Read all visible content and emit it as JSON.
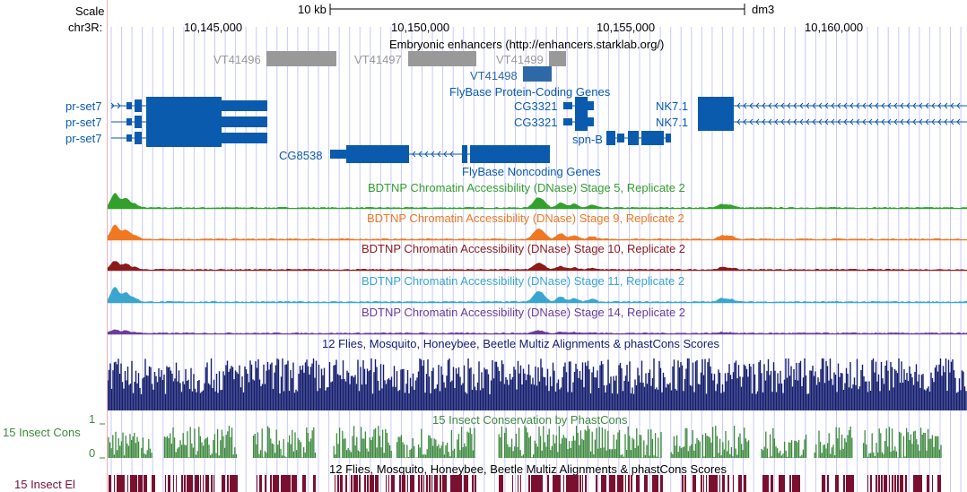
{
  "header": {
    "scale_label": "Scale",
    "chrom_label": "chr3R:",
    "scalebar_label": "10 kb",
    "assembly": "dm3",
    "ticks": [
      "10,145,000",
      "10,150,000",
      "10,155,000",
      "10,160,000"
    ]
  },
  "tracks": {
    "enhancers": {
      "title": "Embryonic enhancers (http://enhancers.starklab.org/)",
      "items": [
        "VT41496",
        "VT41497",
        "VT41499",
        "VT41498"
      ]
    },
    "coding": {
      "title": "FlyBase Protein-Coding Genes",
      "genes": [
        "pr-set7",
        "pr-set7",
        "pr-set7",
        "CG3321",
        "CG3321",
        "NK7.1",
        "NK7.1",
        "spn-B"
      ]
    },
    "noncoding": {
      "title": "FlyBase Noncoding Genes",
      "genes": [
        "CG8538"
      ]
    },
    "dnase": [
      {
        "title": "BDTNP Chromatin Accessibility (DNase) Stage 5, Replicate 2",
        "color": "#33a02c"
      },
      {
        "title": "BDTNP Chromatin Accessibility (DNase) Stage 9, Replicate 2",
        "color": "#f07820"
      },
      {
        "title": "BDTNP Chromatin Accessibility (DNase) Stage 10, Replicate 2",
        "color": "#8b1a1a"
      },
      {
        "title": "BDTNP Chromatin Accessibility (DNase) Stage 11, Replicate 2",
        "color": "#3aa6d0"
      },
      {
        "title": "BDTNP Chromatin Accessibility (DNase) Stage 14, Replicate 2",
        "color": "#6a3d9a"
      }
    ],
    "multiz": {
      "title": "12 Flies, Mosquito, Honeybee, Beetle Multiz Alignments & phastCons Scores",
      "color": "#141e6e"
    },
    "phastcons": {
      "side_label": "15 Insect Cons",
      "title": "15 Insect Conservation by PhastCons",
      "scale_max": "1",
      "scale_min": "0",
      "color": "#3d8a3d"
    },
    "elements": {
      "side_label": "15 Insect El",
      "title": "12 Flies, Mosquito, Honeybee, Beetle Multiz Alignments & phastCons Scores",
      "color": "#7a1030"
    }
  },
  "colors": {
    "gene": "#0a5aad",
    "enhancer_gray": "#999999",
    "enhancer_blue": "#2f68a8",
    "grid": "#c8c8ff",
    "left_border": "#f0b0b0"
  }
}
